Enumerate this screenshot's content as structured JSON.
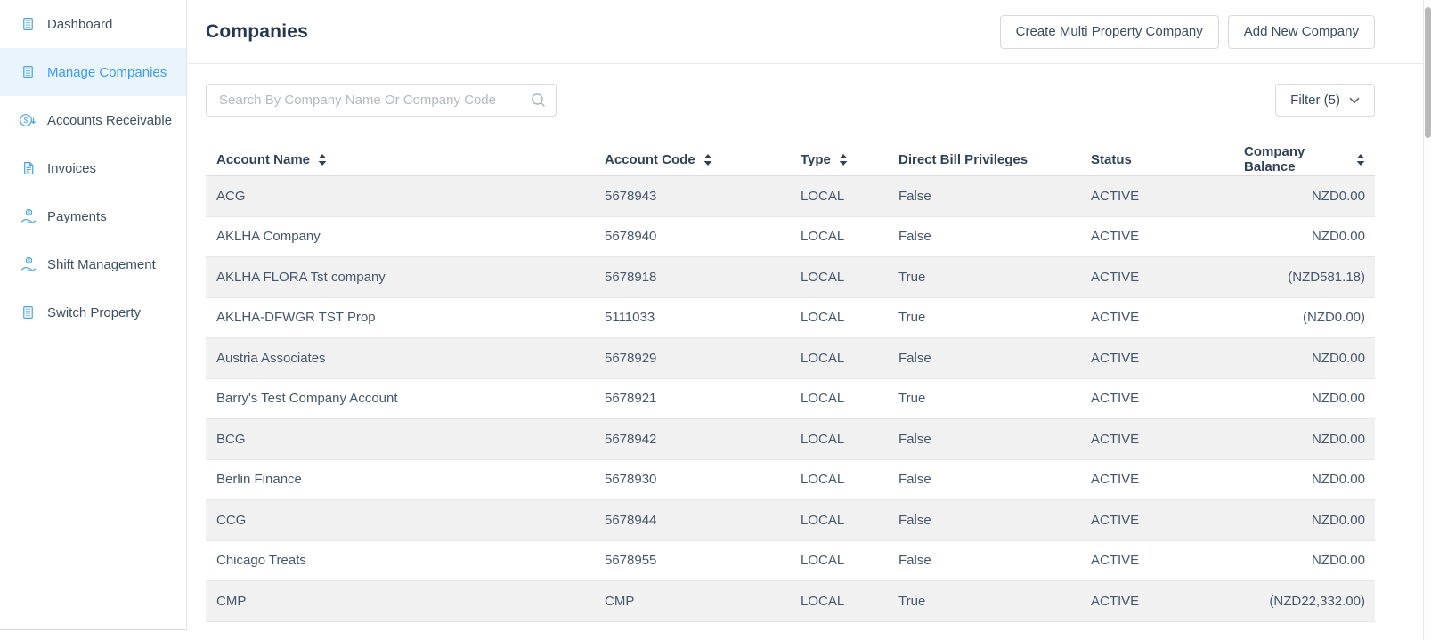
{
  "sidebar": {
    "items": [
      {
        "label": "Dashboard",
        "icon": "building-icon",
        "selected": false
      },
      {
        "label": "Manage Companies",
        "icon": "building-icon",
        "selected": true
      },
      {
        "label": "Accounts Receivable",
        "icon": "dollar-circle-icon",
        "selected": false
      },
      {
        "label": "Invoices",
        "icon": "invoice-icon",
        "selected": false
      },
      {
        "label": "Payments",
        "icon": "hand-coin-icon",
        "selected": false
      },
      {
        "label": "Shift Management",
        "icon": "hand-coin-icon",
        "selected": false
      },
      {
        "label": "Switch Property",
        "icon": "building-icon",
        "selected": false
      }
    ]
  },
  "header": {
    "title": "Companies",
    "buttons": [
      {
        "label": "Create Multi Property Company"
      },
      {
        "label": "Add New Company"
      }
    ]
  },
  "toolbar": {
    "search_placeholder": "Search By Company Name Or Company Code",
    "search_value": "",
    "filter_label": "Filter (5)"
  },
  "table": {
    "columns": [
      {
        "key": "name",
        "label": "Account Name",
        "sortable": true
      },
      {
        "key": "code",
        "label": "Account Code",
        "sortable": true
      },
      {
        "key": "type",
        "label": "Type",
        "sortable": true
      },
      {
        "key": "dbp",
        "label": "Direct Bill Privileges",
        "sortable": false
      },
      {
        "key": "status",
        "label": "Status",
        "sortable": false
      },
      {
        "key": "balance",
        "label": "Company Balance",
        "sortable": true
      }
    ],
    "rows": [
      {
        "name": "ACG",
        "code": "5678943",
        "type": "LOCAL",
        "dbp": "False",
        "status": "ACTIVE",
        "balance": "NZD0.00"
      },
      {
        "name": "AKLHA Company",
        "code": "5678940",
        "type": "LOCAL",
        "dbp": "False",
        "status": "ACTIVE",
        "balance": "NZD0.00"
      },
      {
        "name": "AKLHA FLORA Tst company",
        "code": "5678918",
        "type": "LOCAL",
        "dbp": "True",
        "status": "ACTIVE",
        "balance": "(NZD581.18)"
      },
      {
        "name": "AKLHA-DFWGR TST Prop",
        "code": "5111033",
        "type": "LOCAL",
        "dbp": "True",
        "status": "ACTIVE",
        "balance": "(NZD0.00)"
      },
      {
        "name": "Austria Associates",
        "code": "5678929",
        "type": "LOCAL",
        "dbp": "False",
        "status": "ACTIVE",
        "balance": "NZD0.00"
      },
      {
        "name": "Barry's Test Company Account",
        "code": "5678921",
        "type": "LOCAL",
        "dbp": "True",
        "status": "ACTIVE",
        "balance": "NZD0.00"
      },
      {
        "name": "BCG",
        "code": "5678942",
        "type": "LOCAL",
        "dbp": "False",
        "status": "ACTIVE",
        "balance": "NZD0.00"
      },
      {
        "name": "Berlin Finance",
        "code": "5678930",
        "type": "LOCAL",
        "dbp": "False",
        "status": "ACTIVE",
        "balance": "NZD0.00"
      },
      {
        "name": "CCG",
        "code": "5678944",
        "type": "LOCAL",
        "dbp": "False",
        "status": "ACTIVE",
        "balance": "NZD0.00"
      },
      {
        "name": "Chicago Treats",
        "code": "5678955",
        "type": "LOCAL",
        "dbp": "False",
        "status": "ACTIVE",
        "balance": "NZD0.00"
      },
      {
        "name": "CMP",
        "code": "CMP",
        "type": "LOCAL",
        "dbp": "True",
        "status": "ACTIVE",
        "balance": "(NZD22,332.00)"
      }
    ]
  },
  "colors": {
    "accent_blue": "#4aa3e8",
    "selected_item_bg": "#e9f4fd",
    "heading_text": "#24374e",
    "body_text": "#44566b",
    "zebra_row_bg": "#f1f1f2"
  }
}
